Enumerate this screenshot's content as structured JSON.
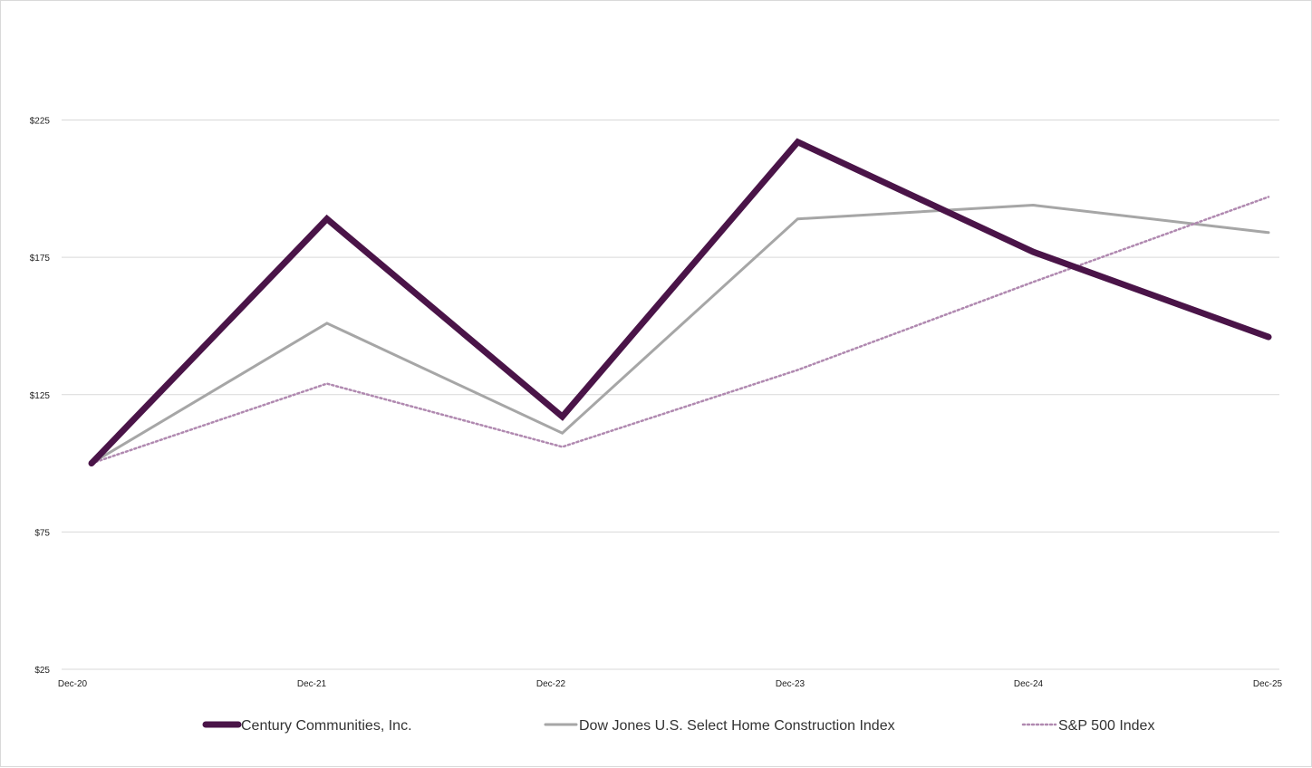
{
  "chart_data": {
    "type": "line",
    "title": "",
    "xlabel": "",
    "ylabel": "",
    "categories": [
      "Dec-20",
      "Dec-21",
      "Dec-22",
      "Dec-23",
      "Dec-24",
      "Dec-25"
    ],
    "y_ticks": [
      "$25",
      "$75",
      "$125",
      "$175",
      "$225"
    ],
    "y_tick_values": [
      25,
      75,
      125,
      175,
      225
    ],
    "ylim": [
      25,
      225
    ],
    "grid": true,
    "legend_position": "bottom",
    "series": [
      {
        "name": "Century Communities, Inc.",
        "values": [
          100,
          189,
          117,
          217,
          177,
          146
        ],
        "color": "#4a1448",
        "style": "solid-thick"
      },
      {
        "name": "Dow Jones U.S. Select Home Construction Index",
        "values": [
          100,
          151,
          111,
          189,
          194,
          184
        ],
        "color": "#a6a6a6",
        "style": "solid"
      },
      {
        "name": "S&P 500 Index",
        "values": [
          100,
          129,
          106,
          134,
          166,
          197
        ],
        "color": "#b089b0",
        "style": "dotted"
      }
    ]
  }
}
